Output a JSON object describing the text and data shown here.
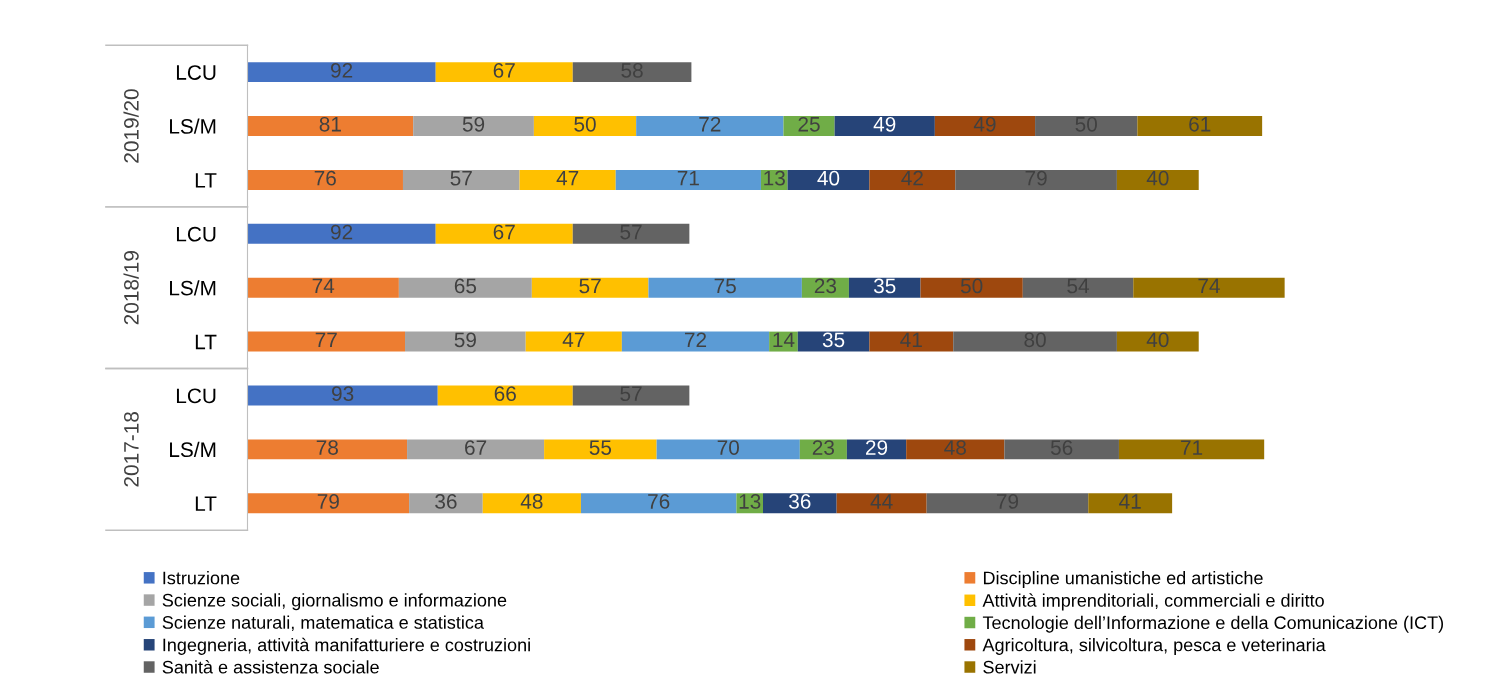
{
  "chart_data": {
    "type": "bar",
    "orientation": "horizontal",
    "stacked": true,
    "data_labels": true,
    "grid": false,
    "legend": "bottom",
    "tick_labels": "y",
    "categories": [
      "LCU",
      "LS/M",
      "LT",
      "LCU",
      "LS/M",
      "LT",
      "LCU",
      "LS/M",
      "LT"
    ],
    "annotations": [
      "2019/20",
      "2018/19",
      "2017-18"
    ],
    "series": [
      {
        "name": "Istruzione",
        "color": "#4472c4",
        "values": [
          92,
          null,
          null,
          92,
          null,
          null,
          93,
          null,
          null
        ]
      },
      {
        "name": "Discipline umanistiche ed artistiche",
        "color": "#ed7d31",
        "values": [
          null,
          81,
          76,
          null,
          74,
          77,
          null,
          78,
          79
        ]
      },
      {
        "name": "Scienze sociali, giornalismo e informazione",
        "color": "#a5a5a5",
        "values": [
          null,
          59,
          57,
          null,
          65,
          59,
          null,
          67,
          36
        ]
      },
      {
        "name": "Attività imprenditoriali, commerciali e diritto",
        "color": "#ffc000",
        "values": [
          67,
          50,
          47,
          67,
          57,
          47,
          66,
          55,
          48
        ]
      },
      {
        "name": "Scienze naturali, matematica e statistica",
        "color": "#5b9bd5",
        "values": [
          null,
          72,
          71,
          null,
          75,
          72,
          null,
          70,
          76
        ]
      },
      {
        "name": "Tecnologie dell’Informazione e della Comunicazione (ICT)",
        "color": "#70ad47",
        "values": [
          null,
          25,
          13,
          null,
          23,
          14,
          null,
          23,
          13
        ]
      },
      {
        "name": "Ingegneria, attività manifatturiere e costruzioni",
        "color": "#264478",
        "values": [
          null,
          49,
          40,
          null,
          35,
          35,
          null,
          29,
          36
        ]
      },
      {
        "name": "Agricoltura, silvicoltura, pesca e veterinaria",
        "color": "#9e480e",
        "values": [
          null,
          49,
          42,
          null,
          50,
          41,
          null,
          48,
          44
        ]
      },
      {
        "name": "Sanità e assistenza sociale",
        "color": "#636363",
        "values": [
          58,
          50,
          79,
          57,
          54,
          80,
          57,
          56,
          79
        ]
      },
      {
        "name": "Servizi",
        "color": "#997300",
        "values": [
          null,
          61,
          40,
          null,
          74,
          40,
          null,
          71,
          41
        ]
      }
    ]
  }
}
